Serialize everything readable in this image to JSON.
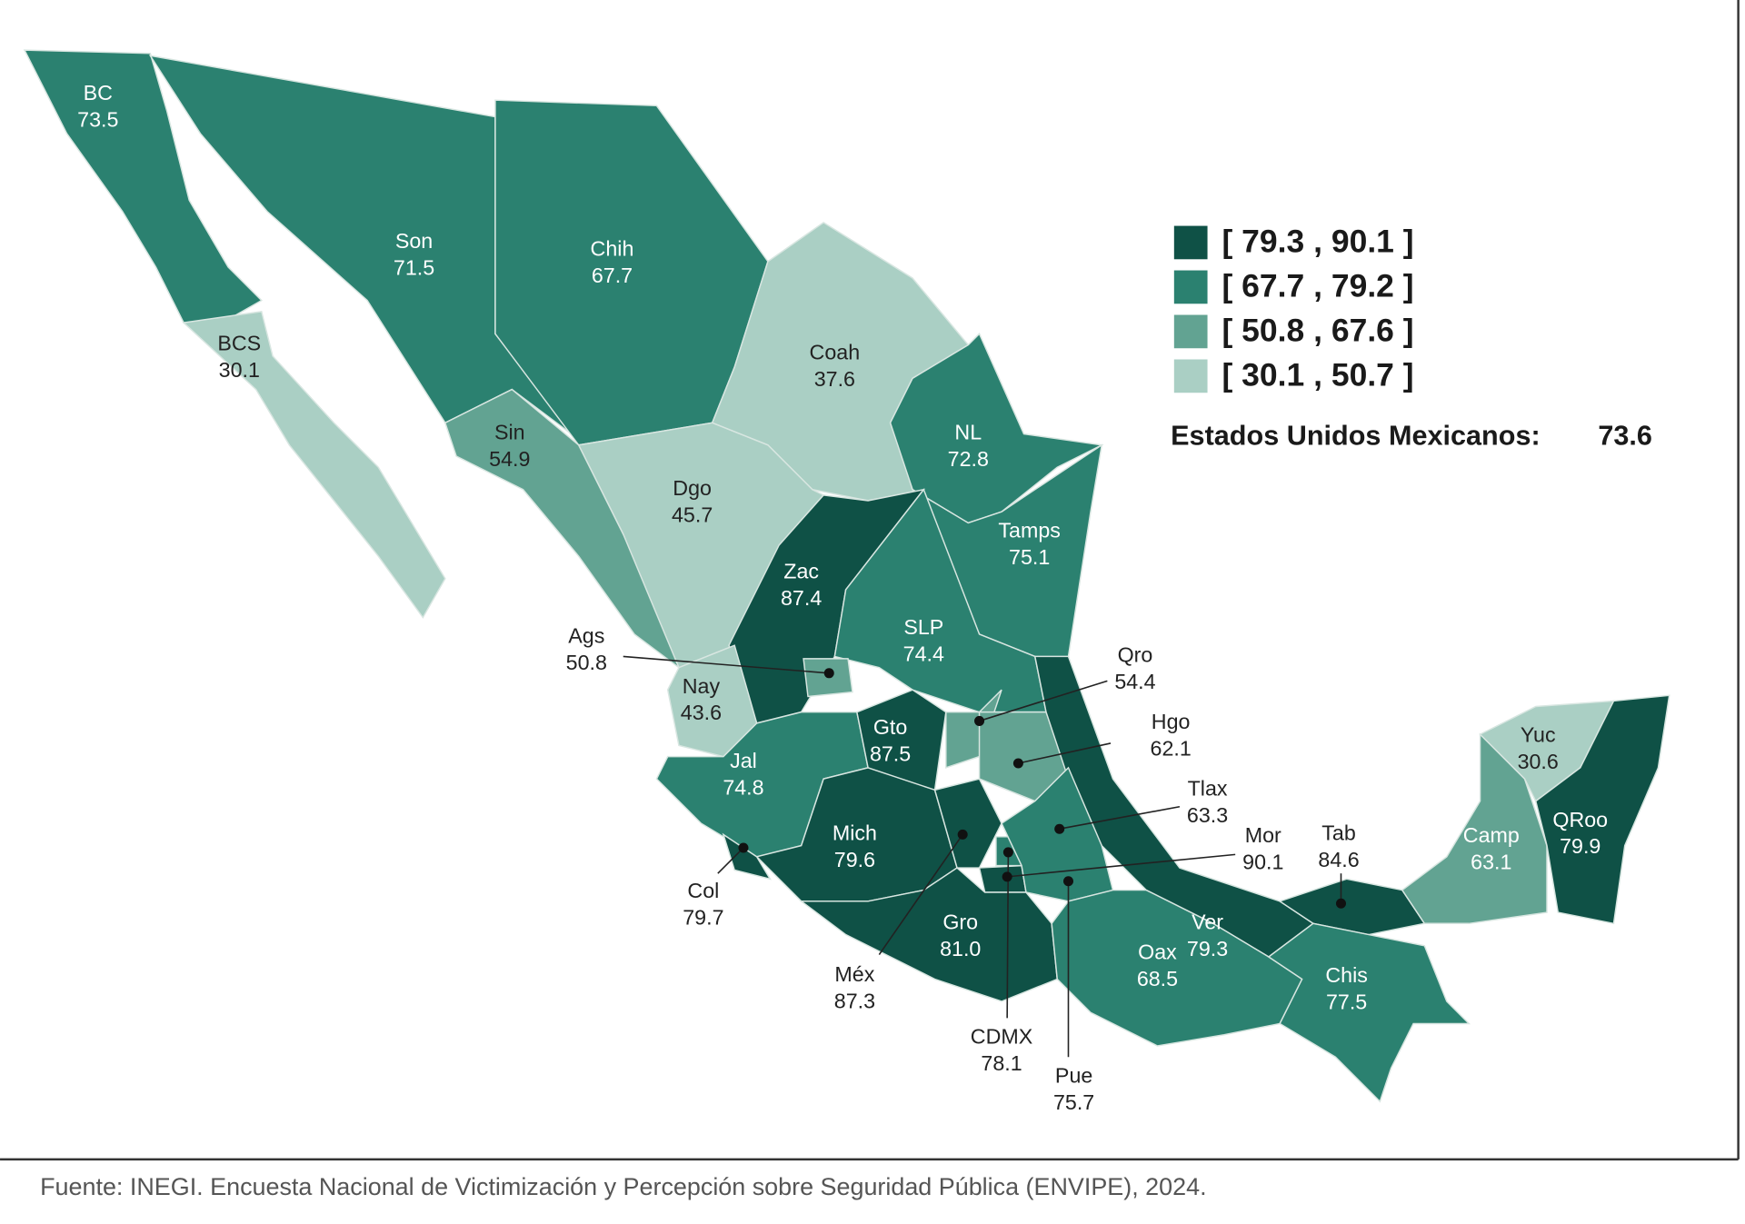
{
  "map": {
    "regions": [
      {
        "name": "BC",
        "value": 73.5
      },
      {
        "name": "BCS",
        "value": 30.1
      },
      {
        "name": "Son",
        "value": 71.5
      },
      {
        "name": "Chih",
        "value": 67.7
      },
      {
        "name": "Coah",
        "value": 37.6
      },
      {
        "name": "NL",
        "value": 72.8
      },
      {
        "name": "Tamps",
        "value": 75.1
      },
      {
        "name": "Sin",
        "value": 54.9
      },
      {
        "name": "Dgo",
        "value": 45.7
      },
      {
        "name": "Zac",
        "value": 87.4
      },
      {
        "name": "SLP",
        "value": 74.4
      },
      {
        "name": "Nay",
        "value": 43.6
      },
      {
        "name": "Ags",
        "value": 50.8
      },
      {
        "name": "Jal",
        "value": 74.8
      },
      {
        "name": "Gto",
        "value": 87.5
      },
      {
        "name": "Qro",
        "value": 54.4
      },
      {
        "name": "Hgo",
        "value": 62.1
      },
      {
        "name": "Ver",
        "value": 79.3
      },
      {
        "name": "Mich",
        "value": 79.6
      },
      {
        "name": "Col",
        "value": 79.7
      },
      {
        "name": "Méx",
        "value": 87.3
      },
      {
        "name": "CDMX",
        "value": 78.1
      },
      {
        "name": "Mor",
        "value": 90.1
      },
      {
        "name": "Tlax",
        "value": 63.3
      },
      {
        "name": "Pue",
        "value": 75.7
      },
      {
        "name": "Gro",
        "value": 81,
        "value_label": "81.0"
      },
      {
        "name": "Oax",
        "value": 68.5
      },
      {
        "name": "Tab",
        "value": 84.6
      },
      {
        "name": "Chis",
        "value": 77.5
      },
      {
        "name": "Camp",
        "value": 63.1
      },
      {
        "name": "Yuc",
        "value": 30.6
      },
      {
        "name": "QRoo",
        "value": 79.9
      }
    ],
    "legend": [
      {
        "label": "[ 79.3 , 90.1 ]",
        "min": 79.3,
        "max": 90.1,
        "color": "#0f5146"
      },
      {
        "label": "[ 67.7 , 79.2 ]",
        "min": 67.7,
        "max": 79.2,
        "color": "#2b8170"
      },
      {
        "label": "[ 50.8 , 67.6 ]",
        "min": 50.8,
        "max": 67.6,
        "color": "#62a392"
      },
      {
        "label": "[ 30.1 , 50.7 ]",
        "min": 30.1,
        "max": 50.7,
        "color": "#aacfc4"
      }
    ],
    "national": {
      "label": "Estados Unidos Mexicanos:",
      "value": 73.6
    }
  },
  "source": "Fuente: INEGI. Encuesta Nacional de Victimización y Percepción sobre Seguridad Pública (ENVIPE), 2024."
}
